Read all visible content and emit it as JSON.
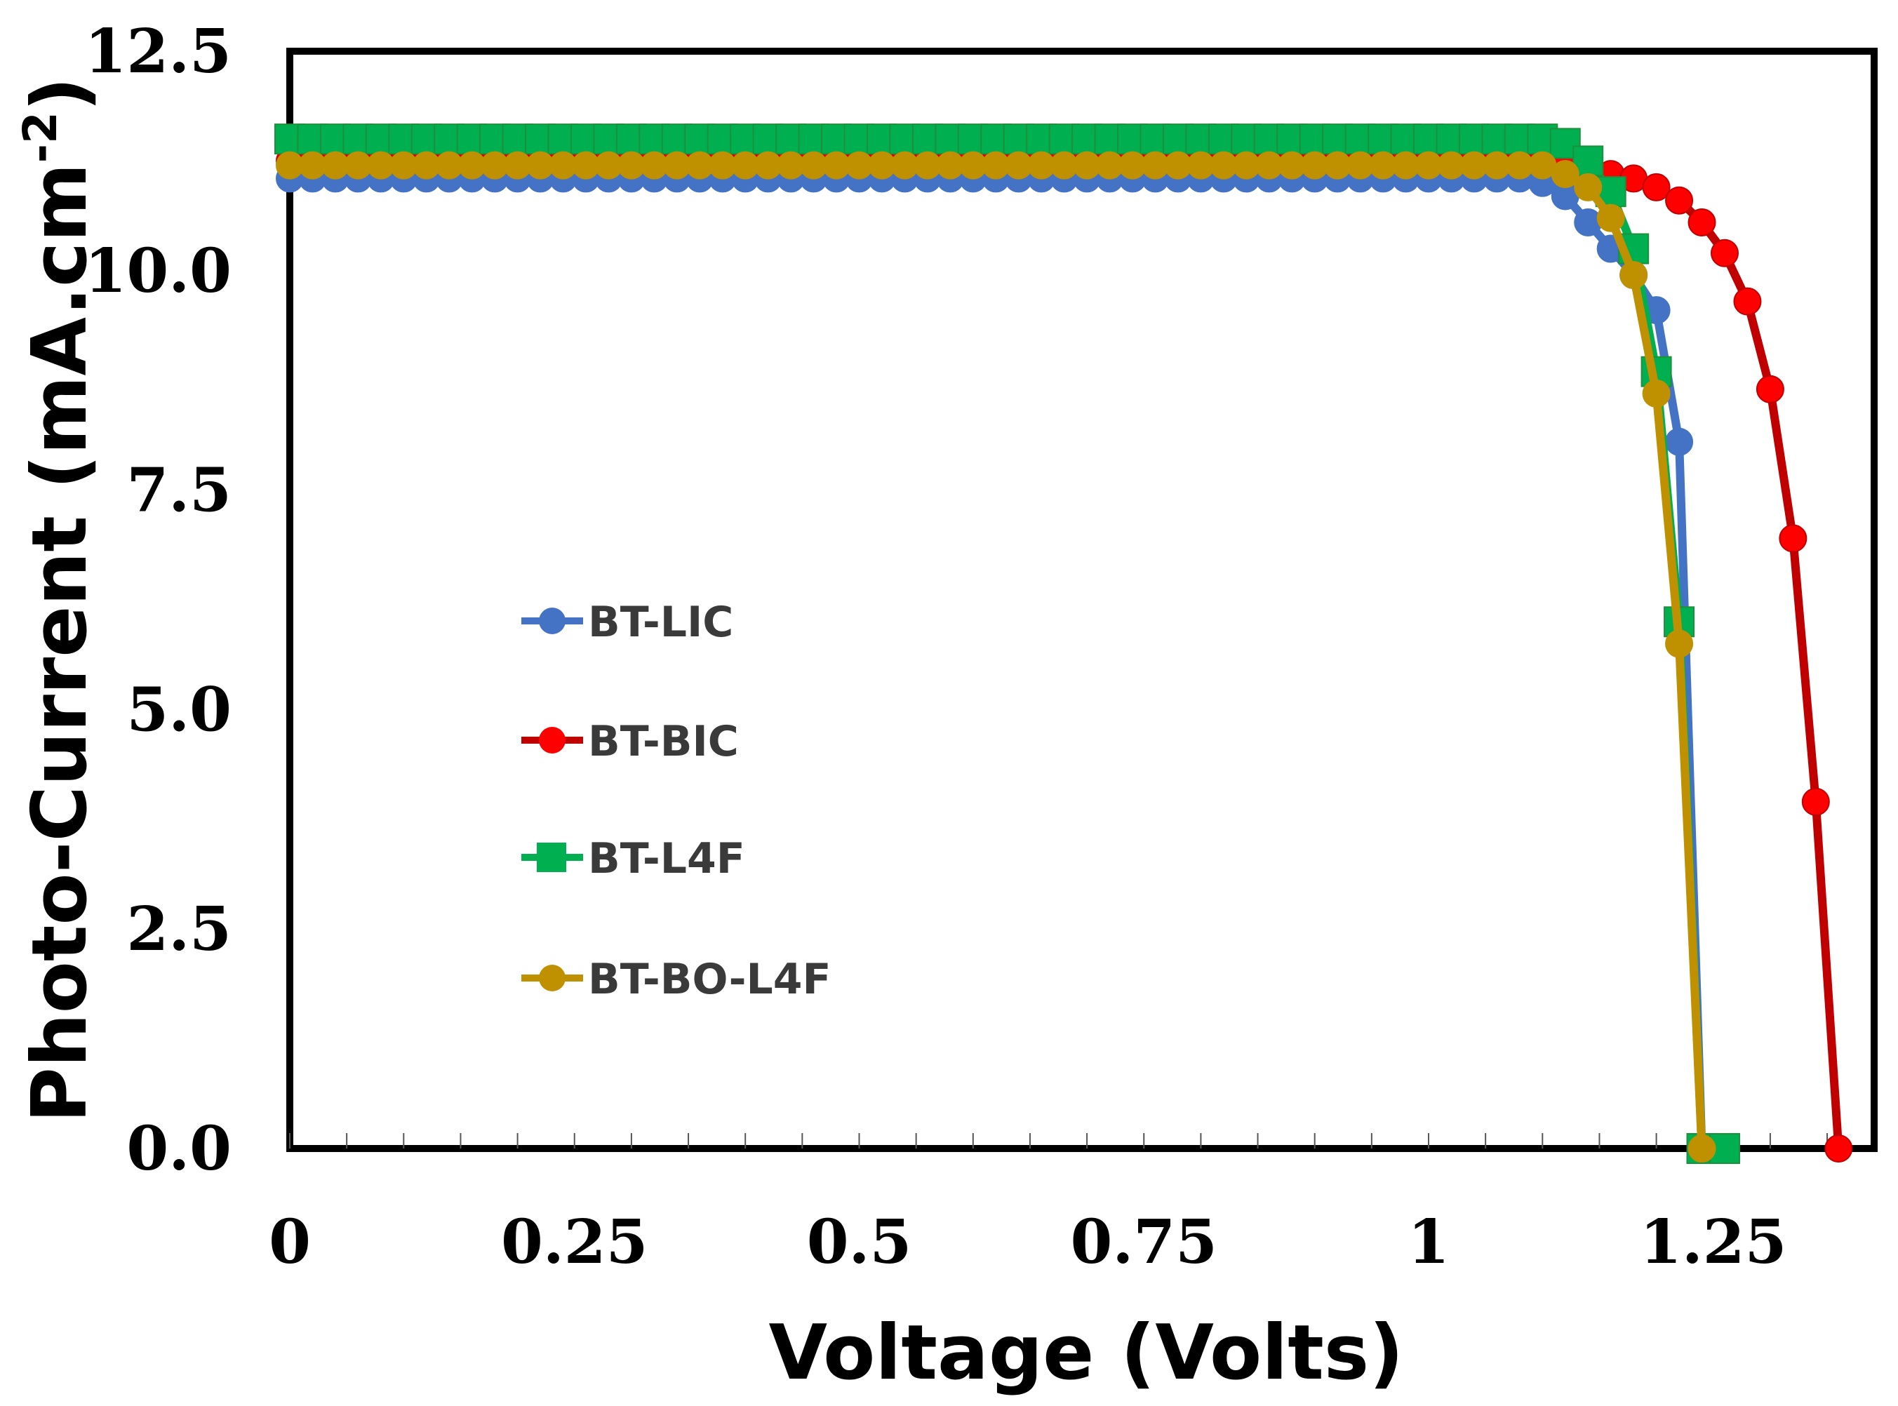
{
  "chart_data": {
    "type": "line",
    "title": "",
    "xlabel": "Voltage (Volts)",
    "ylabel": "Photo-Current (mA.cm",
    "ylabel_superscript": "-2",
    "ylabel_close": ")",
    "xlim": [
      0,
      1.4
    ],
    "ylim": [
      0,
      12.5
    ],
    "xticks": [
      0,
      0.25,
      0.5,
      0.75,
      1,
      1.25
    ],
    "xtick_labels": [
      "0",
      "0.25",
      "0.5",
      "0.75",
      "1",
      "1.25"
    ],
    "yticks": [
      0,
      2.5,
      5,
      7.5,
      10,
      12.5
    ],
    "ytick_labels": [
      "0.0",
      "2.5",
      "5.0",
      "7.5",
      "10.0",
      "12.5"
    ],
    "legend_position": "center-left",
    "series": [
      {
        "name": "BT-LIC",
        "color": "#4472C4",
        "marker": "circle",
        "flat_from": 0,
        "flat_to": 1.08,
        "flat_step": 0.02,
        "flat_value": 11.05,
        "tail": [
          [
            1.1,
            11.0
          ],
          [
            1.12,
            10.85
          ],
          [
            1.14,
            10.55
          ],
          [
            1.16,
            10.25
          ],
          [
            1.18,
            9.95
          ],
          [
            1.2,
            9.55
          ],
          [
            1.22,
            8.05
          ],
          [
            1.24,
            0
          ]
        ]
      },
      {
        "name": "BT-BIC",
        "color": "#FF0000",
        "line_color": "#C00000",
        "marker": "circle",
        "flat_from": 0,
        "flat_to": 1.1,
        "flat_step": 0.02,
        "flat_value": 11.25,
        "tail": [
          [
            1.12,
            11.2
          ],
          [
            1.14,
            11.15
          ],
          [
            1.16,
            11.1
          ],
          [
            1.18,
            11.05
          ],
          [
            1.2,
            10.95
          ],
          [
            1.22,
            10.8
          ],
          [
            1.24,
            10.55
          ],
          [
            1.26,
            10.2
          ],
          [
            1.28,
            9.65
          ],
          [
            1.3,
            8.65
          ],
          [
            1.32,
            6.95
          ],
          [
            1.34,
            3.95
          ],
          [
            1.36,
            0
          ]
        ]
      },
      {
        "name": "BT-L4F",
        "color": "#00B050",
        "marker": "square",
        "flat_from": 0,
        "flat_to": 1.1,
        "flat_step": 0.02,
        "flat_value": 11.5,
        "tail": [
          [
            1.12,
            11.45
          ],
          [
            1.14,
            11.25
          ],
          [
            1.16,
            10.9
          ],
          [
            1.18,
            10.25
          ],
          [
            1.2,
            8.85
          ],
          [
            1.22,
            6.0
          ],
          [
            1.24,
            0
          ],
          [
            1.26,
            0
          ]
        ]
      },
      {
        "name": "BT-BO-L4F",
        "color": "#BF9000",
        "marker": "circle",
        "flat_from": 0,
        "flat_to": 1.1,
        "flat_step": 0.02,
        "flat_value": 11.2,
        "tail": [
          [
            1.12,
            11.1
          ],
          [
            1.14,
            10.95
          ],
          [
            1.16,
            10.6
          ],
          [
            1.18,
            9.95
          ],
          [
            1.2,
            8.6
          ],
          [
            1.22,
            5.75
          ],
          [
            1.24,
            0
          ]
        ]
      }
    ]
  }
}
